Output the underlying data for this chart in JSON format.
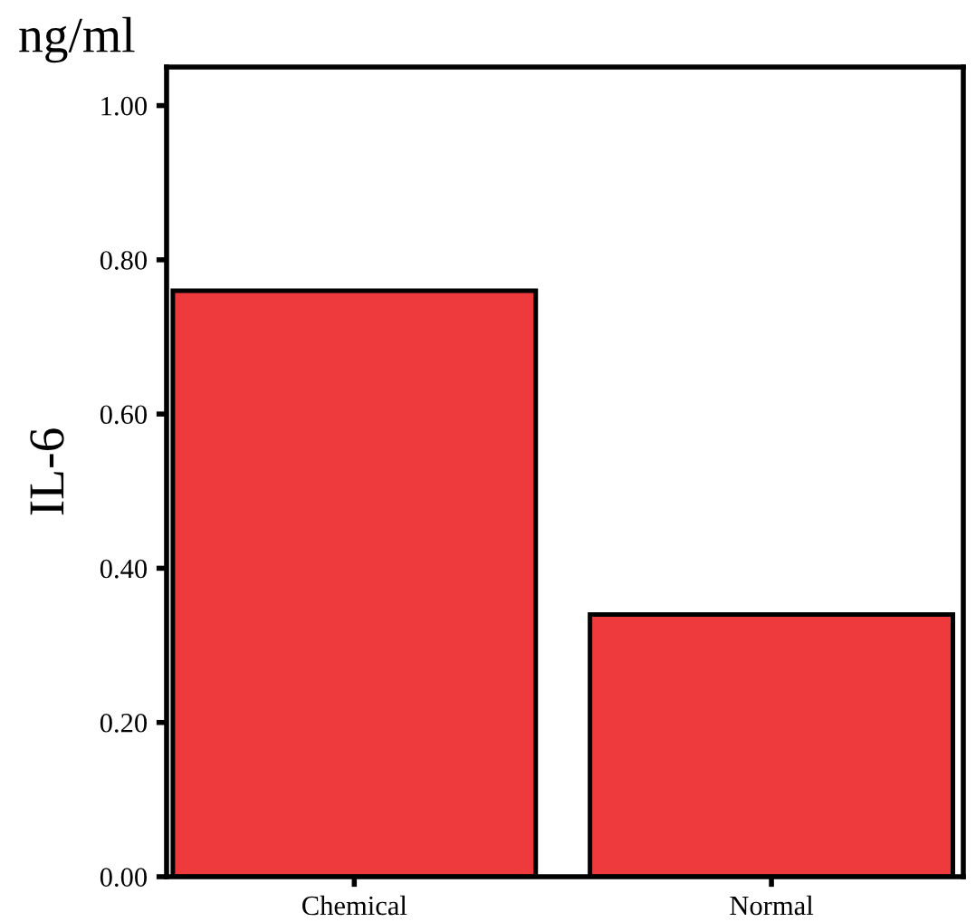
{
  "chart_data": {
    "type": "bar",
    "ylabel": "IL-6",
    "annotations": [
      "ng/ml"
    ],
    "categories": [
      "Chemical",
      "Normal"
    ],
    "values": [
      0.76,
      0.34
    ],
    "color": "#ee3a3c",
    "ylim": [
      0,
      1.05
    ],
    "yticks": [
      {
        "value": 0,
        "label": "0.00"
      },
      {
        "value": 0.2,
        "label": "0.20"
      },
      {
        "value": 0.4,
        "label": "0.40"
      },
      {
        "value": 0.6,
        "label": "0.60"
      },
      {
        "value": 0.8,
        "label": "0.80"
      },
      {
        "value": 1.0,
        "label": "1.00"
      }
    ],
    "grid": false
  }
}
